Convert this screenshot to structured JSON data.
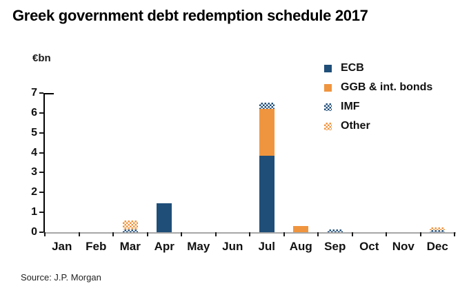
{
  "title": "Greek government debt redemption schedule 2017",
  "source": "Source: J.P. Morgan",
  "chart_data": {
    "type": "bar",
    "stacked": true,
    "title": "Greek government debt redemption schedule 2017",
    "unit_label": "€bn",
    "xlabel": "",
    "ylabel": "€bn",
    "categories": [
      "Jan",
      "Feb",
      "Mar",
      "Apr",
      "May",
      "Jun",
      "Jul",
      "Aug",
      "Sep",
      "Oct",
      "Nov",
      "Dec"
    ],
    "series": [
      {
        "name": "ECB",
        "color": "#1F4E79",
        "pattern": "solid",
        "values": [
          0,
          0,
          0,
          1.45,
          0,
          0,
          3.85,
          0,
          0,
          0,
          0,
          0
        ]
      },
      {
        "name": "GGB & int. bonds",
        "color": "#F0953F",
        "pattern": "solid",
        "values": [
          0,
          0,
          0,
          0,
          0,
          0,
          2.35,
          0.3,
          0,
          0,
          0,
          0
        ]
      },
      {
        "name": "IMF",
        "color": "#1F4E79",
        "pattern": "checker",
        "values": [
          0,
          0,
          0.15,
          0,
          0,
          0,
          0.3,
          0,
          0.15,
          0,
          0,
          0.1
        ]
      },
      {
        "name": "Other",
        "color": "#F0953F",
        "pattern": "checker",
        "values": [
          0,
          0,
          0.45,
          0,
          0,
          0,
          0,
          0,
          0,
          0,
          0,
          0.15
        ]
      }
    ],
    "ylim": [
      0,
      7
    ],
    "yticks": [
      0,
      1,
      2,
      3,
      4,
      5,
      6,
      7
    ],
    "grid": false,
    "legend_position": "top-right",
    "axis_colors": {
      "y_axis": "#000000",
      "x_axis": "#a6a6a6",
      "ticks": "#1a1a1a"
    }
  }
}
